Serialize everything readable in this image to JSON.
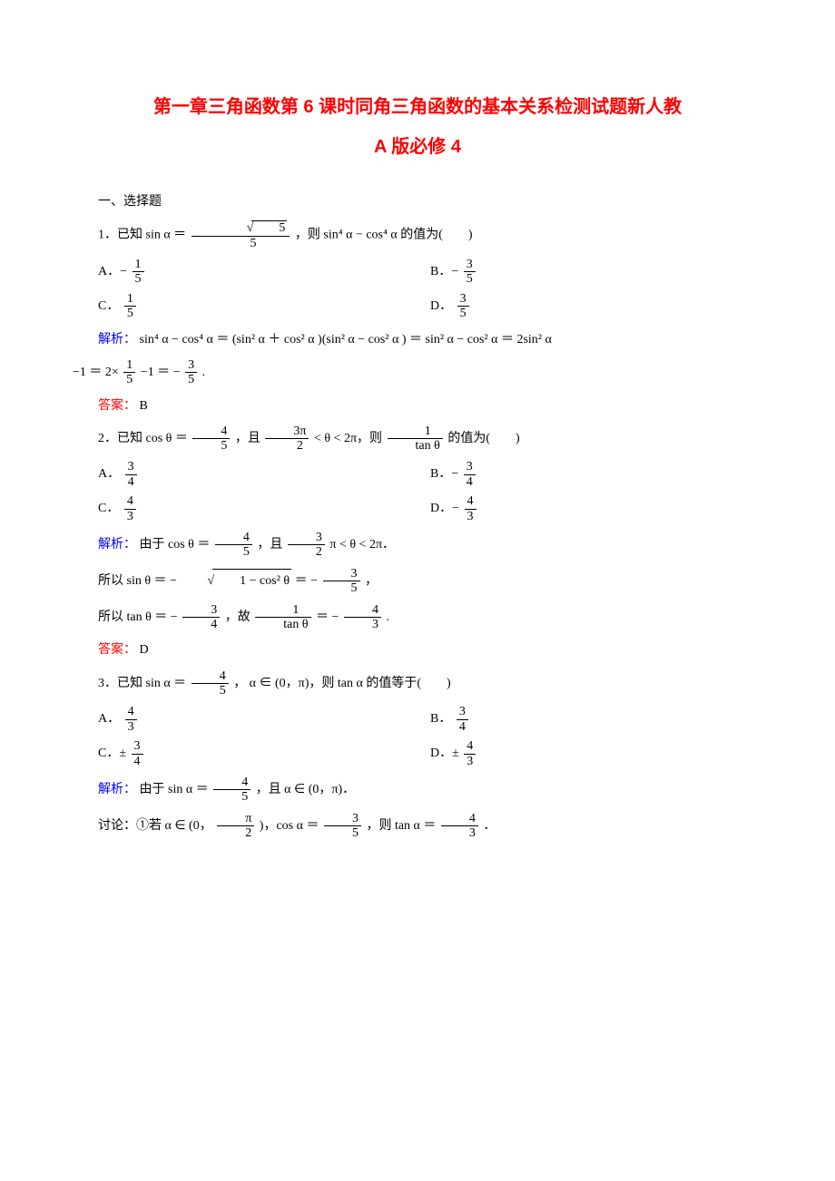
{
  "title_line1": "第一章三角函数第 6 课时同角三角函数的基本关系检测试题新人教",
  "title_line2": "A 版必修 4",
  "section_head": "一、选择题",
  "q1": {
    "stem_pre": "1．已知 sin α ＝",
    "stem_frac_num": "√5",
    "stem_frac_den": "5",
    "stem_post": "，则 sin⁴ α − cos⁴ α 的值为(　　)",
    "optA_pre": "A．−",
    "optA_num": "1",
    "optA_den": "5",
    "optB_pre": "B．−",
    "optB_num": "3",
    "optB_den": "5",
    "optC_pre": "C．",
    "optC_num": "1",
    "optC_den": "5",
    "optD_pre": "D．",
    "optD_num": "3",
    "optD_den": "5",
    "analysis_label": "解析：",
    "analysis_body_1": "sin⁴ α − cos⁴ α ＝ (sin² α ＋ cos² α )(sin² α − cos² α ) ＝ sin² α − cos² α ＝ 2sin² α",
    "analysis_body_2a": "−1 ＝ 2×",
    "analysis_n1": "1",
    "analysis_d1": "5",
    "analysis_body_2b": "−1 ＝ −",
    "analysis_n2": "3",
    "analysis_d2": "5",
    "analysis_body_2c": ".",
    "answer_label": "答案：",
    "answer": "B"
  },
  "q2": {
    "stem_pre": "2．已知 cos θ ＝",
    "stem_n1": "4",
    "stem_d1": "5",
    "stem_mid": "，且",
    "stem_n2": "3π",
    "stem_d2": "2",
    "stem_post1": "< θ < 2π，则",
    "stem_n3": "1",
    "stem_d3": "tan θ",
    "stem_post2": "的值为(　　)",
    "optA_pre": "A．",
    "optA_num": "3",
    "optA_den": "4",
    "optB_pre": "B．−",
    "optB_num": "3",
    "optB_den": "4",
    "optC_pre": "C．",
    "optC_num": "4",
    "optC_den": "3",
    "optD_pre": "D．−",
    "optD_num": "4",
    "optD_den": "3",
    "ana_label": "解析：",
    "ana_a": "由于 cos θ ＝",
    "ana_n1": "4",
    "ana_d1": "5",
    "ana_b": "，且",
    "ana_n2": "3",
    "ana_d2": "2",
    "ana_c": "π < θ < 2π．",
    "step2a": "所以 sin θ ＝ −",
    "step2_rad": "1 − cos² θ",
    "step2b": "＝ −",
    "step2_n": "3",
    "step2_d": "5",
    "step2c": "，",
    "step3a": "所以 tan θ ＝ −",
    "step3_n1": "3",
    "step3_d1": "4",
    "step3b": "，故",
    "step3_n2": "1",
    "step3_d2": "tan θ",
    "step3c": "＝ −",
    "step3_n3": "4",
    "step3_d3": "3",
    "step3d": ".",
    "answer_label": "答案：",
    "answer": "D"
  },
  "q3": {
    "stem_pre": "3．已知 sin α ＝",
    "stem_n": "4",
    "stem_d": "5",
    "stem_post": "， α ∈ (0，π)，则 tan α 的值等于(　　)",
    "optA_pre": "A．",
    "optA_num": "4",
    "optA_den": "3",
    "optB_pre": "B．",
    "optB_num": "3",
    "optB_den": "4",
    "optC_pre": "C．±",
    "optC_num": "3",
    "optC_den": "4",
    "optD_pre": "D．±",
    "optD_num": "4",
    "optD_den": "3",
    "ana_label": "解析：",
    "ana_a": "由于 sin α ＝",
    "ana_n": "4",
    "ana_d": "5",
    "ana_b": "，且 α ∈ (0，π)．",
    "disc_a": "讨论：①若 α ∈ (0，",
    "disc_n1": "π",
    "disc_d1": "2",
    "disc_b": ")，cos α ＝",
    "disc_n2": "3",
    "disc_d2": "5",
    "disc_c": "，则 tan α ＝",
    "disc_n3": "4",
    "disc_d3": "3",
    "disc_d": "．"
  }
}
